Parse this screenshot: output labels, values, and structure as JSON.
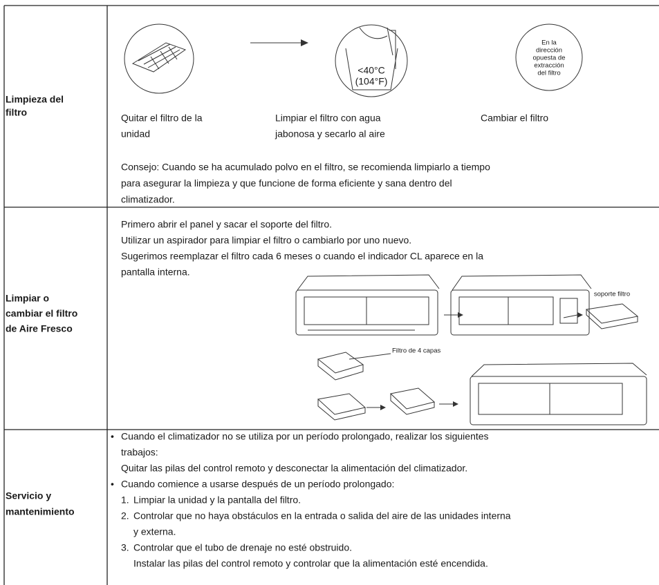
{
  "table": {
    "rows": [
      {
        "header": [
          "Limpieza del",
          "filtro"
        ],
        "steps": [
          {
            "caption": [
              "Quitar el filtro de la",
              "unidad"
            ]
          },
          {
            "figure_text": [
              "<40°C",
              "(104°F)"
            ],
            "caption": [
              "Limpiar el filtro con agua",
              "jabonosa y secarlo al aire"
            ]
          },
          {
            "figure_text": [
              "En la",
              "dirección",
              "opuesta de",
              "extracción",
              "del filtro"
            ],
            "caption": [
              "Cambiar el filtro"
            ]
          }
        ],
        "tip": [
          "Consejo: Cuando se ha acumulado polvo en el filtro, se recomienda limpiarlo a tiempo",
          "para asegurar la limpieza y que funcione de forma eficiente y sana dentro del",
          "climatizador."
        ]
      },
      {
        "header": [
          "Limpiar o",
          "cambiar el filtro",
          "de Aire Fresco"
        ],
        "lines": [
          "Primero abrir el panel y sacar el soporte del filtro.",
          "Utilizar un aspirador para limpiar el filtro o cambiarlo por uno nuevo.",
          "Sugerimos reemplazar el filtro cada 6 meses o cuando el indicador CL aparece en la",
          "pantalla interna."
        ],
        "figure_labels": [
          "soporte filtro",
          "Filtro de 4 capas"
        ]
      },
      {
        "header": [
          "Servicio y",
          "mantenimiento"
        ],
        "items": [
          {
            "marker": "•",
            "lines": [
              "Cuando el climatizador no se utiliza por un período prolongado, realizar los siguientes",
              "trabajos:",
              "Quitar las pilas del control remoto y desconectar la alimentación del climatizador."
            ]
          },
          {
            "marker": "•",
            "lines": [
              "Cuando comience a usarse después de un período prolongado:"
            ]
          },
          {
            "marker": "1.",
            "lines": [
              "Limpiar la unidad y la pantalla del filtro."
            ]
          },
          {
            "marker": "2.",
            "lines": [
              "Controlar que no haya obstáculos en la entrada o salida del aire de las unidades interna",
              "y externa."
            ]
          },
          {
            "marker": "3.",
            "lines": [
              "Controlar que el tubo de drenaje no esté obstruido.",
              "Instalar las pilas del control remoto y controlar que la alimentación esté encendida."
            ]
          }
        ]
      }
    ]
  }
}
